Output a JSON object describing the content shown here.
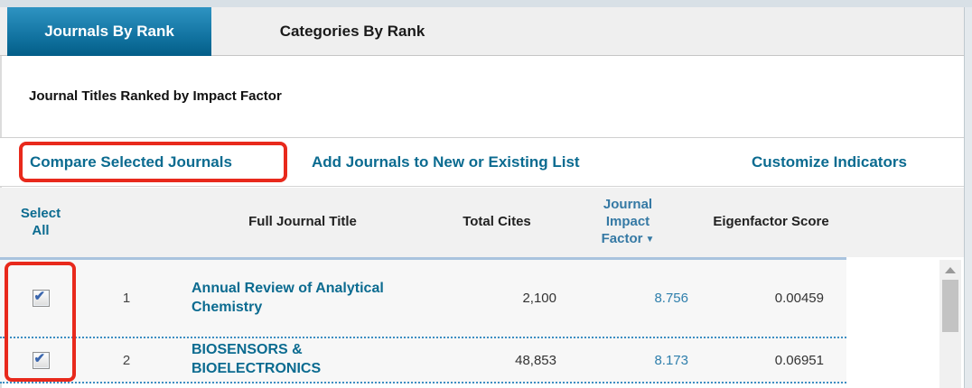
{
  "tabs": [
    {
      "label": "Journals By Rank",
      "active": true
    },
    {
      "label": "Categories By Rank",
      "active": false
    }
  ],
  "subtitle": "Journal Titles Ranked by Impact Factor",
  "actions": {
    "compare": "Compare Selected Journals",
    "add": "Add Journals to New or Existing List",
    "customize": "Customize Indicators"
  },
  "table": {
    "headers": {
      "select": "Select All",
      "title": "Full Journal Title",
      "cites": "Total Cites",
      "jif": "Journal Impact Factor",
      "eigen": "Eigenfactor Score"
    },
    "sort_icon": "▼",
    "rows": [
      {
        "rank": "1",
        "title": "Annual Review of Analytical Chemistry",
        "cites": "2,100",
        "jif": "8.756",
        "eigen": "0.00459",
        "checked": true
      },
      {
        "rank": "2",
        "title": "BIOSENSORS & BIOELECTRONICS",
        "cites": "48,853",
        "jif": "8.173",
        "eigen": "0.06951",
        "checked": true
      }
    ]
  },
  "icons": {
    "check": "✔"
  },
  "colors": {
    "link_teal": "#0b6b90",
    "jif_blue": "#2f7fac",
    "annotation_red": "#e8291c",
    "tab_active_top": "#2e93c2",
    "tab_active_bottom": "#035e88",
    "header_divider_blue": "#a9c3de",
    "row_dotted_blue": "#3d8ec2"
  }
}
